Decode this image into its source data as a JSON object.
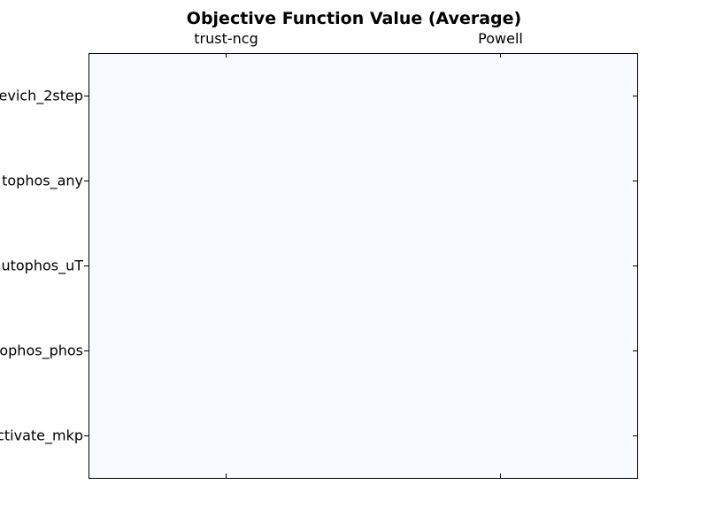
{
  "chart_data": {
    "type": "heatmap",
    "title": "Objective Function Value (Average)",
    "x_categories": [
      "trust-ncg",
      "Powell"
    ],
    "y_categories": [
      "evich_2step",
      "tophos_any",
      "utophos_uT",
      "ophos_phos",
      "ctivate_mkp"
    ],
    "values": [
      [
        0,
        0
      ],
      [
        0,
        0
      ],
      [
        0,
        0
      ],
      [
        0,
        0
      ],
      [
        0,
        0
      ]
    ],
    "x_axis_position": "top",
    "colormap": "Blues",
    "grid": false,
    "legend": "none"
  },
  "colors": {
    "cell_fill": "#f7fbff",
    "frame": "#000000",
    "background": "#ffffff"
  }
}
